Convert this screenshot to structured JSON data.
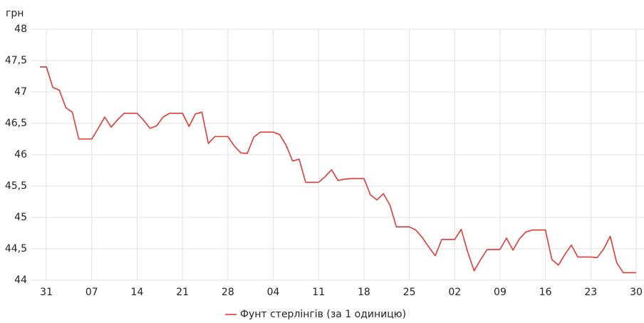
{
  "chart_data": {
    "type": "line",
    "y_label": "грн",
    "categories": [
      null,
      "31",
      null,
      null,
      null,
      null,
      null,
      null,
      "07",
      null,
      null,
      null,
      null,
      null,
      null,
      "14",
      null,
      null,
      null,
      null,
      null,
      null,
      "21",
      null,
      null,
      null,
      null,
      null,
      null,
      "28",
      null,
      null,
      null,
      null,
      null,
      null,
      "04",
      null,
      null,
      null,
      null,
      null,
      null,
      "11",
      null,
      null,
      null,
      null,
      null,
      null,
      "18",
      null,
      null,
      null,
      null,
      null,
      null,
      "25",
      null,
      null,
      null,
      null,
      null,
      null,
      "02",
      null,
      null,
      null,
      null,
      null,
      null,
      "09",
      null,
      null,
      null,
      null,
      null,
      null,
      "16",
      null,
      null,
      null,
      null,
      null,
      null,
      "23",
      null,
      null,
      null,
      null,
      null,
      null,
      "30"
    ],
    "series": [
      {
        "name": "Фунт стерлінгів (за 1 одиницю)",
        "color": "#e53935",
        "values": [
          47.4,
          47.4,
          47.07,
          47.03,
          46.75,
          46.68,
          46.25,
          46.25,
          46.25,
          46.42,
          46.6,
          46.44,
          46.56,
          46.66,
          46.66,
          46.66,
          46.55,
          46.42,
          46.46,
          46.6,
          46.66,
          46.66,
          46.66,
          46.45,
          46.65,
          46.68,
          46.18,
          46.29,
          46.29,
          46.29,
          46.14,
          46.03,
          46.02,
          46.28,
          46.36,
          46.36,
          46.36,
          46.32,
          46.15,
          45.9,
          45.93,
          45.56,
          45.56,
          45.56,
          45.65,
          45.76,
          45.59,
          45.61,
          45.62,
          45.62,
          45.62,
          45.36,
          45.28,
          45.38,
          45.2,
          44.85,
          44.85,
          44.85,
          44.8,
          44.68,
          44.53,
          44.39,
          44.65,
          44.65,
          44.65,
          44.81,
          44.45,
          44.15,
          44.33,
          44.49,
          44.49,
          44.49,
          44.67,
          44.48,
          44.66,
          44.77,
          44.8,
          44.8,
          44.8,
          44.33,
          44.24,
          44.41,
          44.56,
          44.37,
          44.37,
          44.37,
          44.36,
          44.5,
          44.7,
          44.28,
          44.12,
          44.12,
          44.12
        ]
      }
    ],
    "ylim": [
      44,
      48
    ],
    "yticks": [
      44,
      {
        "value": 44.5,
        "label": "44,5"
      },
      45,
      {
        "value": 45.5,
        "label": "45,5"
      },
      46,
      {
        "value": 46.5,
        "label": "46,5"
      },
      47,
      {
        "value": 47.5,
        "label": "47,5"
      },
      48
    ],
    "grid": true,
    "legend": "bottom"
  }
}
